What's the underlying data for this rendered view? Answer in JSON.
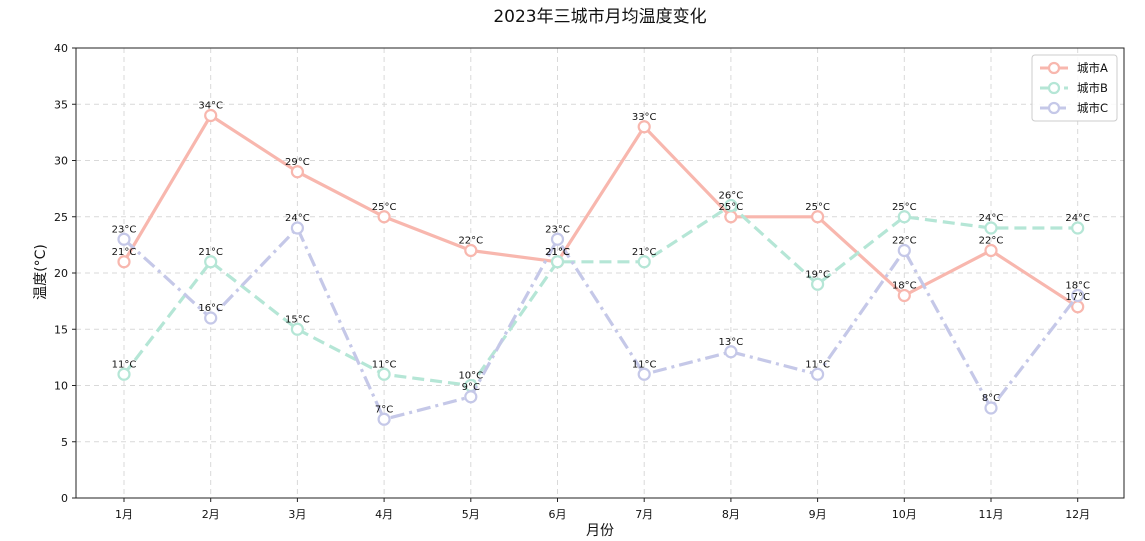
{
  "chart_data": {
    "type": "line",
    "title": "2023年三城市月均温度变化",
    "xlabel": "月份",
    "ylabel": "温度(°C)",
    "categories": [
      "1月",
      "2月",
      "3月",
      "4月",
      "5月",
      "6月",
      "7月",
      "8月",
      "9月",
      "10月",
      "11月",
      "12月"
    ],
    "ylim": [
      0,
      40
    ],
    "yticks": [
      0,
      5,
      10,
      15,
      20,
      25,
      30,
      35,
      40
    ],
    "grid": true,
    "legend_position": "top-right",
    "label_suffix": "°C",
    "series": [
      {
        "name": "城市A",
        "values": [
          21,
          34,
          29,
          25,
          22,
          21,
          33,
          25,
          25,
          18,
          22,
          17
        ],
        "color": "#F8B7AE",
        "line_style": "solid"
      },
      {
        "name": "城市B",
        "values": [
          11,
          21,
          15,
          11,
          10,
          21,
          21,
          26,
          19,
          25,
          24,
          24
        ],
        "color": "#B5E6D6",
        "line_style": "dashed"
      },
      {
        "name": "城市C",
        "values": [
          23,
          16,
          24,
          7,
          9,
          23,
          11,
          13,
          11,
          22,
          8,
          18
        ],
        "color": "#C5C8E8",
        "line_style": "dashdot"
      }
    ]
  }
}
